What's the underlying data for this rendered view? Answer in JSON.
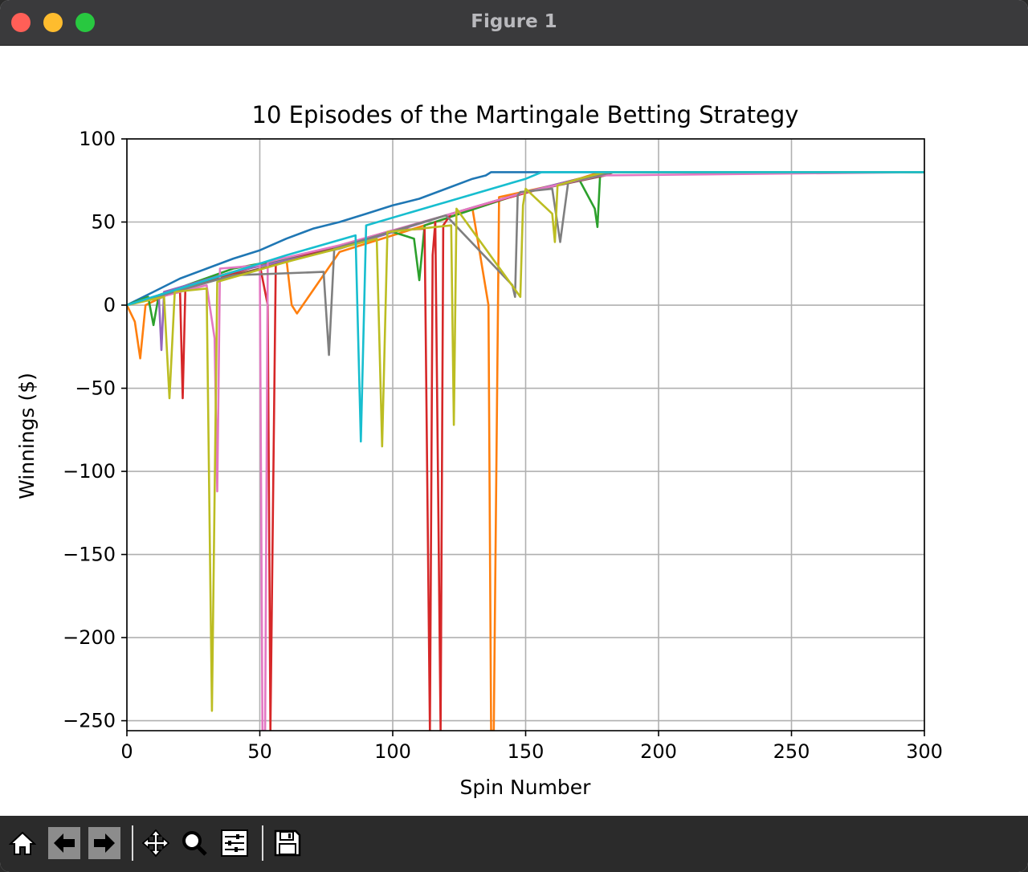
{
  "window": {
    "title": "Figure 1"
  },
  "toolbar": {
    "buttons": [
      {
        "name": "home-icon",
        "label": "home"
      },
      {
        "name": "back-arrow-icon",
        "label": "back"
      },
      {
        "name": "forward-arrow-icon",
        "label": "forward"
      },
      {
        "name": "pan-icon",
        "label": "pan"
      },
      {
        "name": "zoom-icon",
        "label": "zoom"
      },
      {
        "name": "configure-subplots-icon",
        "label": "configure subplots"
      },
      {
        "name": "save-icon",
        "label": "save"
      }
    ]
  },
  "chart_data": {
    "type": "line",
    "title": "10 Episodes of the Martingale Betting Strategy",
    "xlabel": "Spin Number",
    "ylabel": "Winnings ($)",
    "xlim": [
      0,
      300
    ],
    "ylim": [
      -256,
      100
    ],
    "xticks": [
      0,
      50,
      100,
      150,
      200,
      250,
      300
    ],
    "xtick_labels": [
      "0",
      "50",
      "100",
      "150",
      "200",
      "250",
      "300"
    ],
    "yticks": [
      100,
      50,
      0,
      -50,
      -100,
      -150,
      -200,
      -250
    ],
    "ytick_labels": [
      "100",
      "50",
      "0",
      "−50",
      "−100",
      "−150",
      "−200",
      "−250"
    ],
    "grid": true,
    "series": [
      {
        "color": "#1f77b4",
        "x": [
          0,
          10,
          20,
          30,
          40,
          50,
          60,
          70,
          80,
          90,
          100,
          110,
          120,
          130,
          135,
          137,
          300
        ],
        "y": [
          0,
          8,
          16,
          22,
          28,
          33,
          40,
          46,
          50,
          55,
          60,
          64,
          70,
          76,
          78,
          80,
          80
        ]
      },
      {
        "color": "#ff7f0e",
        "x": [
          0,
          3,
          5,
          7,
          20,
          40,
          60,
          62,
          64,
          80,
          100,
          120,
          130,
          136,
          137,
          138,
          140,
          160,
          170,
          178,
          300
        ],
        "y": [
          0,
          -10,
          -32,
          0,
          10,
          20,
          28,
          0,
          -5,
          32,
          42,
          52,
          58,
          0,
          -256,
          -256,
          65,
          72,
          76,
          80,
          80
        ]
      },
      {
        "color": "#2ca02c",
        "x": [
          0,
          8,
          10,
          12,
          40,
          80,
          100,
          108,
          110,
          112,
          150,
          170,
          176,
          177,
          178,
          180,
          300
        ],
        "y": [
          0,
          5,
          -12,
          6,
          22,
          34,
          44,
          40,
          15,
          48,
          68,
          76,
          58,
          47,
          78,
          80,
          80
        ]
      },
      {
        "color": "#d62728",
        "x": [
          0,
          20,
          21,
          22,
          50,
          53,
          54,
          56,
          100,
          112,
          114,
          115,
          116,
          117,
          118,
          119,
          122,
          160,
          180,
          300
        ],
        "y": [
          0,
          8,
          -56,
          10,
          24,
          0,
          -256,
          25,
          45,
          46,
          -256,
          30,
          50,
          -100,
          -256,
          48,
          55,
          72,
          80,
          80
        ]
      },
      {
        "color": "#9467bd",
        "x": [
          0,
          12,
          13,
          14,
          40,
          80,
          120,
          150,
          170,
          182,
          300
        ],
        "y": [
          0,
          6,
          -27,
          8,
          20,
          34,
          54,
          68,
          76,
          80,
          80
        ]
      },
      {
        "color": "#8c564b",
        "x": [
          0,
          30,
          60,
          90,
          120,
          150,
          180,
          183,
          300
        ],
        "y": [
          0,
          14,
          26,
          40,
          54,
          68,
          78,
          80,
          80
        ]
      },
      {
        "color": "#e377c2",
        "x": [
          0,
          30,
          33,
          34,
          35,
          50,
          51,
          52,
          53,
          80,
          120,
          150,
          178,
          300
        ],
        "y": [
          0,
          12,
          -20,
          -112,
          22,
          24,
          -256,
          -256,
          26,
          36,
          54,
          68,
          78,
          80
        ]
      },
      {
        "color": "#7f7f7f",
        "x": [
          0,
          40,
          74,
          76,
          78,
          120,
          145,
          146,
          147,
          148,
          160,
          163,
          166,
          183,
          300
        ],
        "y": [
          0,
          18,
          20,
          -30,
          34,
          54,
          12,
          5,
          66,
          68,
          70,
          38,
          74,
          80,
          80
        ]
      },
      {
        "color": "#bcbd22",
        "x": [
          0,
          14,
          16,
          18,
          30,
          32,
          34,
          60,
          94,
          96,
          98,
          122,
          123,
          124,
          148,
          149,
          150,
          160,
          161,
          162,
          170,
          180,
          300
        ],
        "y": [
          0,
          5,
          -56,
          8,
          10,
          -244,
          14,
          26,
          40,
          -85,
          44,
          48,
          -72,
          58,
          5,
          60,
          70,
          55,
          38,
          72,
          76,
          80,
          80
        ]
      },
      {
        "color": "#17becf",
        "x": [
          0,
          20,
          40,
          60,
          86,
          88,
          90,
          120,
          150,
          156,
          300
        ],
        "y": [
          0,
          10,
          20,
          30,
          42,
          -82,
          48,
          62,
          76,
          80,
          80
        ]
      }
    ]
  }
}
